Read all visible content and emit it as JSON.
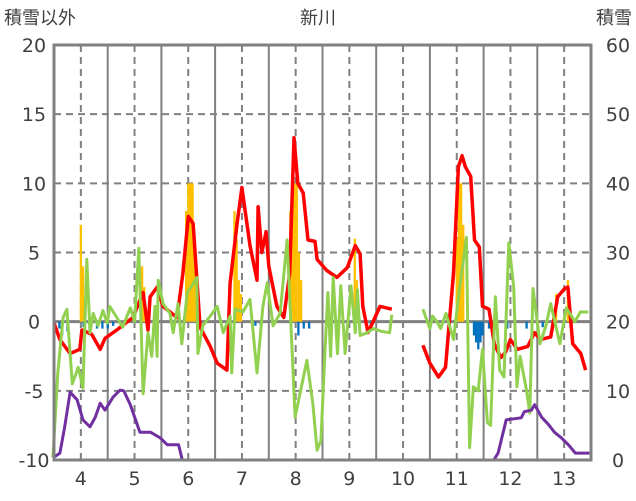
{
  "chart_data": {
    "type": "line",
    "title": "新川",
    "ylabel_left": "積雪以外",
    "ylabel_right": "積雪",
    "xlim": [
      3.5,
      13.5
    ],
    "ylim_left": [
      -10,
      20
    ],
    "ylim_right": [
      0,
      60
    ],
    "x_ticks": [
      "4",
      "5",
      "6",
      "7",
      "8",
      "9",
      "10",
      "11",
      "12",
      "13"
    ],
    "x_tick_values": [
      4,
      5,
      6,
      7,
      8,
      9,
      10,
      11,
      12,
      13
    ],
    "y_left_ticks": [
      20,
      15,
      10,
      5,
      0,
      -5,
      -10
    ],
    "y_right_ticks": [
      60,
      50,
      40,
      30,
      20,
      10,
      0
    ],
    "grid": true,
    "series": [
      {
        "id": "red",
        "color": "#ff0000",
        "axis": "left",
        "segments": [
          [
            [
              3.5,
              -0.1
            ],
            [
              3.61,
              -1.3
            ],
            [
              3.8,
              -2.3
            ],
            [
              3.98,
              -2.0
            ],
            [
              4.02,
              -0.6
            ],
            [
              4.2,
              -0.9
            ],
            [
              4.36,
              -2.0
            ],
            [
              4.45,
              -1.2
            ],
            [
              4.67,
              -0.6
            ],
            [
              4.97,
              0.3
            ],
            [
              5.16,
              2.1
            ],
            [
              5.25,
              -0.6
            ],
            [
              5.29,
              1.8
            ],
            [
              5.42,
              2.5
            ],
            [
              5.53,
              1.1
            ],
            [
              5.79,
              0.3
            ],
            [
              5.9,
              3.5
            ],
            [
              6.0,
              7.6
            ],
            [
              6.09,
              7.1
            ],
            [
              6.22,
              -0.4
            ],
            [
              6.41,
              -1.8
            ],
            [
              6.54,
              -3.0
            ],
            [
              6.72,
              -3.5
            ],
            [
              6.78,
              2.8
            ],
            [
              6.91,
              7.1
            ],
            [
              7.0,
              9.7
            ],
            [
              7.15,
              5.5
            ],
            [
              7.28,
              3.0
            ],
            [
              7.3,
              8.3
            ],
            [
              7.37,
              5.0
            ],
            [
              7.45,
              6.5
            ],
            [
              7.5,
              4.0
            ],
            [
              7.65,
              1.1
            ],
            [
              7.78,
              0.3
            ],
            [
              7.89,
              3.5
            ],
            [
              7.97,
              13.3
            ],
            [
              8.04,
              10.0
            ],
            [
              8.14,
              9.3
            ],
            [
              8.23,
              5.9
            ],
            [
              8.36,
              5.8
            ],
            [
              8.4,
              4.5
            ],
            [
              8.58,
              3.7
            ],
            [
              8.77,
              3.2
            ],
            [
              8.96,
              3.9
            ],
            [
              9.11,
              5.5
            ],
            [
              9.2,
              4.9
            ],
            [
              9.25,
              1.1
            ],
            [
              9.35,
              -0.8
            ],
            [
              9.57,
              1.1
            ],
            [
              9.79,
              0.9
            ]
          ],
          [
            [
              10.37,
              -1.7
            ],
            [
              10.5,
              -3.0
            ],
            [
              10.66,
              -4.0
            ],
            [
              10.79,
              -3.3
            ],
            [
              10.94,
              3.5
            ],
            [
              11.03,
              11.2
            ],
            [
              11.1,
              12.0
            ],
            [
              11.16,
              11.2
            ],
            [
              11.26,
              10.5
            ],
            [
              11.33,
              5.9
            ],
            [
              11.42,
              5.4
            ],
            [
              11.48,
              1.1
            ],
            [
              11.6,
              0.9
            ],
            [
              11.7,
              -1.6
            ],
            [
              11.82,
              -2.6
            ],
            [
              11.91,
              -2.2
            ],
            [
              12.0,
              -1.3
            ],
            [
              12.13,
              -2.0
            ],
            [
              12.32,
              -1.8
            ],
            [
              12.45,
              -0.8
            ],
            [
              12.56,
              -1.3
            ],
            [
              12.75,
              -1.1
            ],
            [
              12.88,
              1.8
            ],
            [
              13.01,
              2.4
            ],
            [
              13.07,
              2.5
            ],
            [
              13.16,
              -1.6
            ],
            [
              13.31,
              -2.3
            ],
            [
              13.4,
              -3.5
            ]
          ]
        ]
      },
      {
        "id": "green",
        "color": "#92d050",
        "axis": "left",
        "segments": [
          [
            [
              3.48,
              -9.8
            ],
            [
              3.57,
              -3.7
            ],
            [
              3.67,
              0.3
            ],
            [
              3.74,
              0.9
            ],
            [
              3.84,
              -4.5
            ],
            [
              3.95,
              -3.3
            ],
            [
              4.04,
              -4.8
            ],
            [
              4.11,
              4.5
            ],
            [
              4.17,
              -0.8
            ],
            [
              4.23,
              0.6
            ],
            [
              4.32,
              -0.3
            ],
            [
              4.41,
              0.8
            ],
            [
              4.49,
              -0.1
            ],
            [
              4.54,
              1.1
            ],
            [
              4.67,
              0.3
            ],
            [
              4.78,
              -0.4
            ],
            [
              4.92,
              1.0
            ],
            [
              5.0,
              0
            ],
            [
              5.08,
              5.3
            ],
            [
              5.16,
              -5.2
            ],
            [
              5.25,
              -0.8
            ],
            [
              5.32,
              -2.5
            ],
            [
              5.38,
              1.1
            ],
            [
              5.42,
              -2.5
            ],
            [
              5.44,
              3.0
            ],
            [
              5.53,
              1.3
            ],
            [
              5.66,
              0.6
            ],
            [
              5.72,
              -0.8
            ],
            [
              5.81,
              1.3
            ],
            [
              5.88,
              -1.6
            ],
            [
              5.98,
              2.1
            ],
            [
              6.07,
              2.6
            ],
            [
              6.16,
              3.2
            ],
            [
              6.18,
              -2.3
            ],
            [
              6.27,
              -0.3
            ],
            [
              6.41,
              0.4
            ],
            [
              6.54,
              1.1
            ],
            [
              6.65,
              -0.8
            ],
            [
              6.78,
              0.4
            ],
            [
              6.81,
              -3.7
            ],
            [
              6.87,
              0.9
            ],
            [
              7.02,
              0.7
            ],
            [
              7.15,
              1.6
            ],
            [
              7.28,
              -3.7
            ],
            [
              7.39,
              1.1
            ],
            [
              7.47,
              2.8
            ],
            [
              7.58,
              -0.3
            ],
            [
              7.71,
              0.6
            ],
            [
              7.84,
              5.9
            ],
            [
              7.99,
              -6.9
            ],
            [
              8.21,
              -2.8
            ],
            [
              8.32,
              -5.9
            ],
            [
              8.4,
              -9.3
            ],
            [
              8.47,
              -8.6
            ],
            [
              8.55,
              -1.8
            ],
            [
              8.6,
              2.1
            ],
            [
              8.65,
              -2.5
            ],
            [
              8.7,
              3.2
            ],
            [
              8.78,
              -2.3
            ],
            [
              8.84,
              2.6
            ],
            [
              8.92,
              -2.3
            ],
            [
              9.03,
              2.6
            ],
            [
              9.11,
              -0.8
            ],
            [
              9.15,
              2.3
            ],
            [
              9.2,
              -1.0
            ],
            [
              9.33,
              -0.8
            ],
            [
              9.45,
              -0.5
            ],
            [
              9.6,
              -0.7
            ],
            [
              9.75,
              -0.8
            ],
            [
              9.79,
              0.5
            ]
          ],
          [
            [
              10.37,
              0.9
            ],
            [
              10.5,
              -0.5
            ],
            [
              10.55,
              0.4
            ],
            [
              10.63,
              0
            ],
            [
              10.7,
              -0.5
            ],
            [
              10.8,
              0.6
            ],
            [
              10.94,
              -1.3
            ],
            [
              11.05,
              2.3
            ],
            [
              11.18,
              6.1
            ],
            [
              11.24,
              -9.1
            ],
            [
              11.31,
              -4.7
            ],
            [
              11.4,
              -5.0
            ],
            [
              11.48,
              -2
            ],
            [
              11.57,
              -7.3
            ],
            [
              11.63,
              -7.5
            ],
            [
              11.72,
              1.8
            ],
            [
              11.8,
              -3.5
            ],
            [
              11.88,
              -4.0
            ],
            [
              11.97,
              5.7
            ],
            [
              12.06,
              2.5
            ],
            [
              12.12,
              -4.7
            ],
            [
              12.18,
              -2.5
            ],
            [
              12.3,
              -5.0
            ],
            [
              12.36,
              -6.6
            ],
            [
              12.42,
              2.4
            ],
            [
              12.55,
              -1.6
            ],
            [
              12.66,
              -0.3
            ],
            [
              12.75,
              1.3
            ],
            [
              12.92,
              -1.6
            ],
            [
              13.04,
              1.0
            ],
            [
              13.2,
              0
            ],
            [
              13.3,
              0.7
            ],
            [
              13.45,
              0.7
            ]
          ]
        ]
      },
      {
        "id": "purple",
        "color": "#7030a0",
        "axis": "right",
        "segments": [
          [
            [
              3.48,
              0.3
            ],
            [
              3.61,
              1
            ],
            [
              3.7,
              4.8
            ],
            [
              3.8,
              9.8
            ],
            [
              3.93,
              8.7
            ],
            [
              4.04,
              5.8
            ],
            [
              4.17,
              4.8
            ],
            [
              4.27,
              6.2
            ],
            [
              4.36,
              8.2
            ],
            [
              4.45,
              7.2
            ],
            [
              4.6,
              9.1
            ],
            [
              4.73,
              10.1
            ],
            [
              4.8,
              10
            ],
            [
              4.92,
              8
            ],
            [
              5.1,
              4
            ],
            [
              5.3,
              4
            ],
            [
              5.48,
              3.2
            ],
            [
              5.61,
              2.2
            ],
            [
              5.82,
              2.2
            ],
            [
              5.89,
              0
            ],
            [
              9.79,
              0
            ]
          ],
          [
            [
              10.37,
              0
            ],
            [
              11.69,
              0
            ],
            [
              11.77,
              1
            ],
            [
              11.92,
              5.8
            ],
            [
              12.2,
              6.1
            ],
            [
              12.26,
              7
            ],
            [
              12.39,
              7.2
            ],
            [
              12.45,
              8
            ],
            [
              12.58,
              6.2
            ],
            [
              12.71,
              5.1
            ],
            [
              12.82,
              4
            ],
            [
              12.95,
              3.2
            ],
            [
              13.08,
              2.2
            ],
            [
              13.21,
              1
            ],
            [
              13.47,
              1
            ]
          ]
        ]
      }
    ],
    "bars": [
      {
        "id": "yellow",
        "color": "#ffc000",
        "axis": "left",
        "values": [
          [
            4.0,
            7
          ],
          [
            4.04,
            4
          ],
          [
            5.14,
            4
          ],
          [
            5.18,
            2.5
          ],
          [
            5.96,
            8
          ],
          [
            6.0,
            10
          ],
          [
            6.04,
            10
          ],
          [
            6.08,
            10
          ],
          [
            6.12,
            6
          ],
          [
            6.86,
            8
          ],
          [
            6.9,
            6
          ],
          [
            6.94,
            3
          ],
          [
            6.98,
            2
          ],
          [
            7.9,
            8
          ],
          [
            7.94,
            10
          ],
          [
            7.98,
            10
          ],
          [
            8.02,
            10
          ],
          [
            8.06,
            5
          ],
          [
            8.1,
            3
          ],
          [
            9.1,
            6
          ],
          [
            9.14,
            3
          ],
          [
            11.0,
            6
          ],
          [
            11.04,
            10
          ],
          [
            11.08,
            10
          ],
          [
            11.12,
            7
          ],
          [
            12.85,
            2
          ],
          [
            13.07,
            3
          ]
        ]
      },
      {
        "id": "blue",
        "color": "#0070c0",
        "axis": "left",
        "values": [
          [
            3.6,
            -0.5
          ],
          [
            3.65,
            -1
          ],
          [
            3.75,
            -0.7
          ],
          [
            4.05,
            -0.4
          ],
          [
            4.3,
            -0.5
          ],
          [
            4.4,
            -0.5
          ],
          [
            4.5,
            -0.5
          ],
          [
            4.6,
            -0.3
          ],
          [
            7.25,
            -0.3
          ],
          [
            7.35,
            -0.3
          ],
          [
            8.05,
            -1
          ],
          [
            8.15,
            -0.5
          ],
          [
            8.25,
            -0.5
          ],
          [
            9.4,
            -0.5
          ],
          [
            11.32,
            -1
          ],
          [
            11.36,
            -1.5
          ],
          [
            11.4,
            -2
          ],
          [
            11.44,
            -1.5
          ],
          [
            11.48,
            -1
          ],
          [
            11.6,
            -0.5
          ],
          [
            11.74,
            -0.5
          ],
          [
            11.94,
            -0.5
          ],
          [
            12.3,
            -0.5
          ],
          [
            12.6,
            -0.4
          ]
        ]
      }
    ]
  }
}
